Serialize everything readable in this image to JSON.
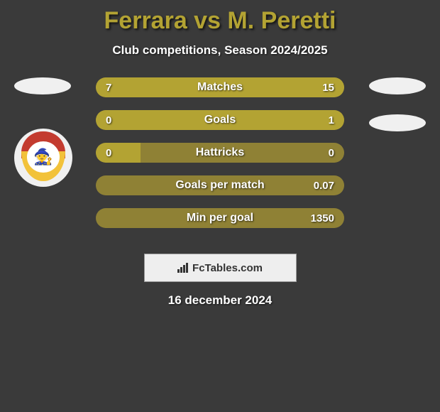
{
  "title": "Ferrara vs M. Peretti",
  "subtitle": "Club competitions, Season 2024/2025",
  "date": "16 december 2024",
  "footer_brand": "FcTables.com",
  "colors": {
    "background": "#3a3a3a",
    "title": "#b3a333",
    "subtitle": "#ffffff",
    "bar_track": "#8f8135",
    "fill_left": "#b3a333",
    "fill_right": "#b3a333",
    "bar_label": "#ffffff",
    "bar_value": "#ffffff",
    "badge_placeholder": "#f0f0f0",
    "footer_box_bg": "#eeeeee",
    "footer_box_text": "#333333",
    "footer_date": "#ffffff",
    "crest_top": "#c33b2f",
    "crest_bottom": "#f2c23a",
    "crest_center": "#ffffff"
  },
  "bars": [
    {
      "label": "Matches",
      "left": "7",
      "right": "15",
      "left_pct": 31,
      "right_pct": 69
    },
    {
      "label": "Goals",
      "left": "0",
      "right": "1",
      "left_pct": 18,
      "right_pct": 82
    },
    {
      "label": "Hattricks",
      "left": "0",
      "right": "0",
      "left_pct": 18,
      "right_pct": 0
    },
    {
      "label": "Goals per match",
      "left": "",
      "right": "0.07",
      "left_pct": 0,
      "right_pct": 0
    },
    {
      "label": "Min per goal",
      "left": "",
      "right": "1350",
      "left_pct": 0,
      "right_pct": 0
    }
  ]
}
